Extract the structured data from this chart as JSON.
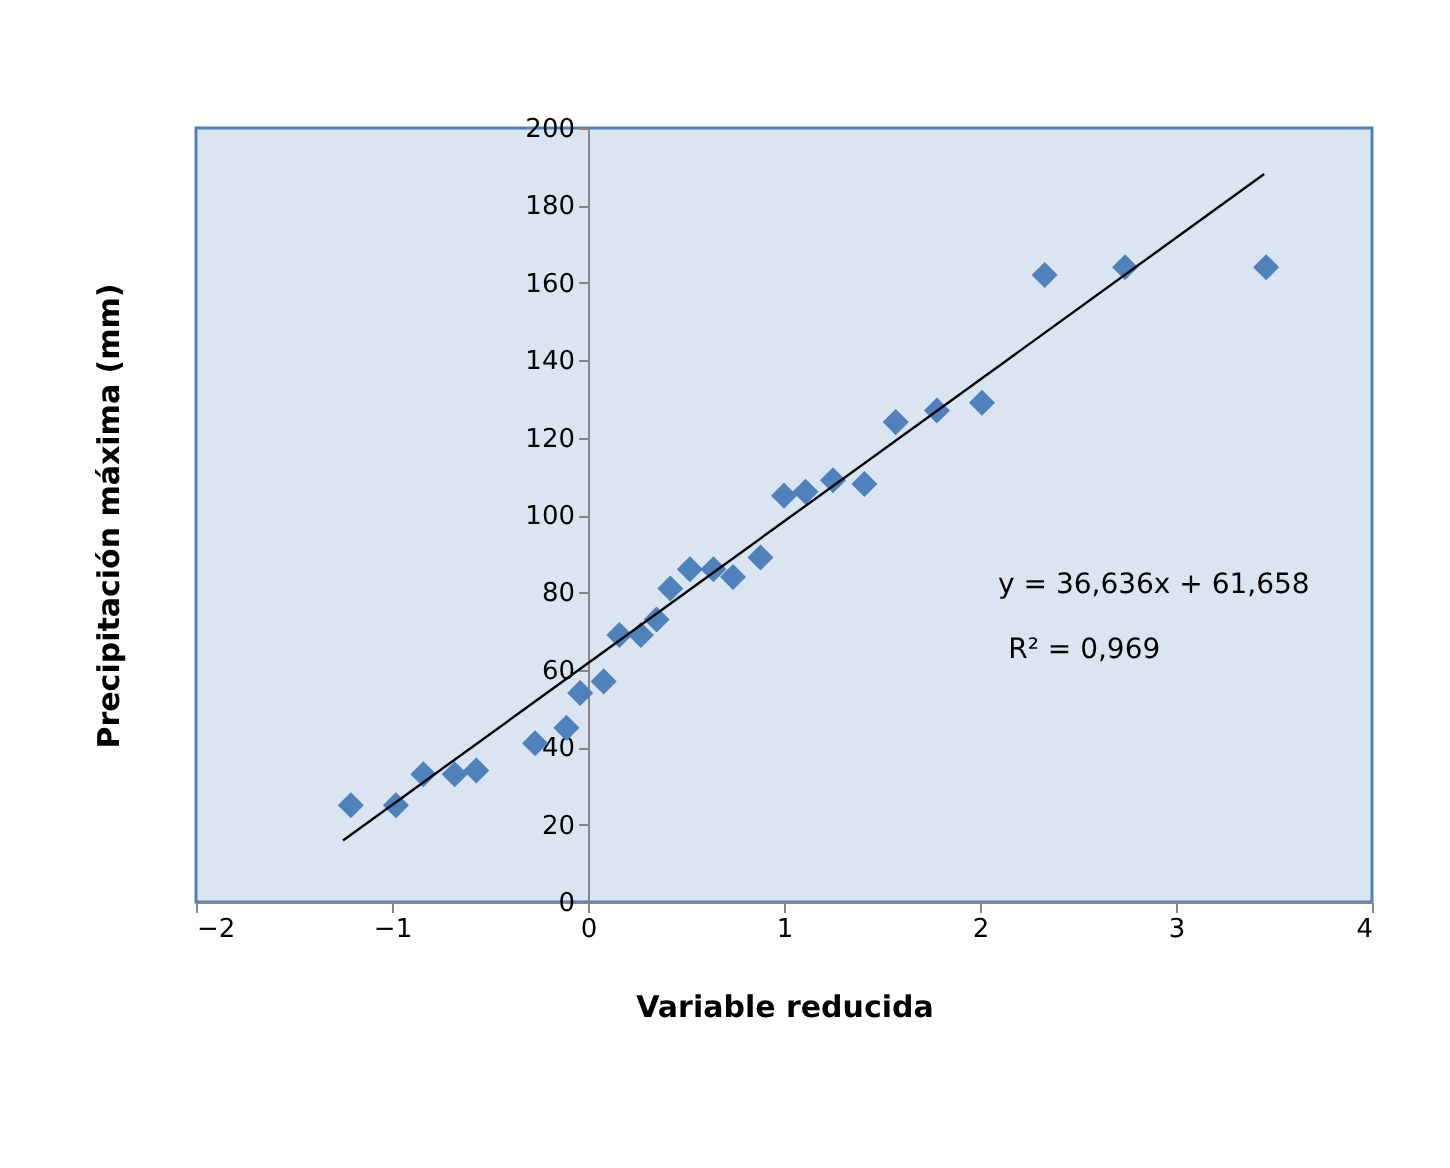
{
  "chart_data": {
    "type": "scatter",
    "xlabel": "Variable reducida",
    "ylabel": "Precipitación máxima (mm)",
    "xlim": [
      -2,
      4
    ],
    "xticks": [
      -2,
      -1,
      0,
      1,
      2,
      3,
      4
    ],
    "ylim": [
      0,
      200
    ],
    "yticks": [
      0,
      20,
      40,
      60,
      80,
      100,
      120,
      140,
      160,
      180,
      200
    ],
    "grid": false,
    "marker": "diamond",
    "series": [
      {
        "color": "#4f81bd",
        "x": [
          -1.21,
          -0.98,
          -0.84,
          -0.68,
          -0.57,
          -0.27,
          -0.11,
          -0.04,
          0.08,
          0.16,
          0.27,
          0.35,
          0.42,
          0.52,
          0.64,
          0.74,
          0.88,
          1.0,
          1.11,
          1.25,
          1.41,
          1.57,
          1.78,
          2.01,
          2.33,
          2.74,
          3.46
        ],
        "values": [
          25,
          25,
          33,
          33,
          34,
          41,
          45,
          54,
          57,
          69,
          69,
          73,
          81,
          86,
          86,
          84,
          89,
          105,
          106,
          109,
          108,
          124,
          127,
          129,
          162,
          164,
          164
        ]
      },
      {
        "type": "line",
        "color": "#000000",
        "line_style": "solid",
        "marker": "none",
        "x": [
          -1.25,
          3.45
        ],
        "values": [
          15.9,
          188.1
        ]
      }
    ],
    "annotations": [
      "y = 36,636x + 61,658",
      "R² = 0,969"
    ]
  }
}
